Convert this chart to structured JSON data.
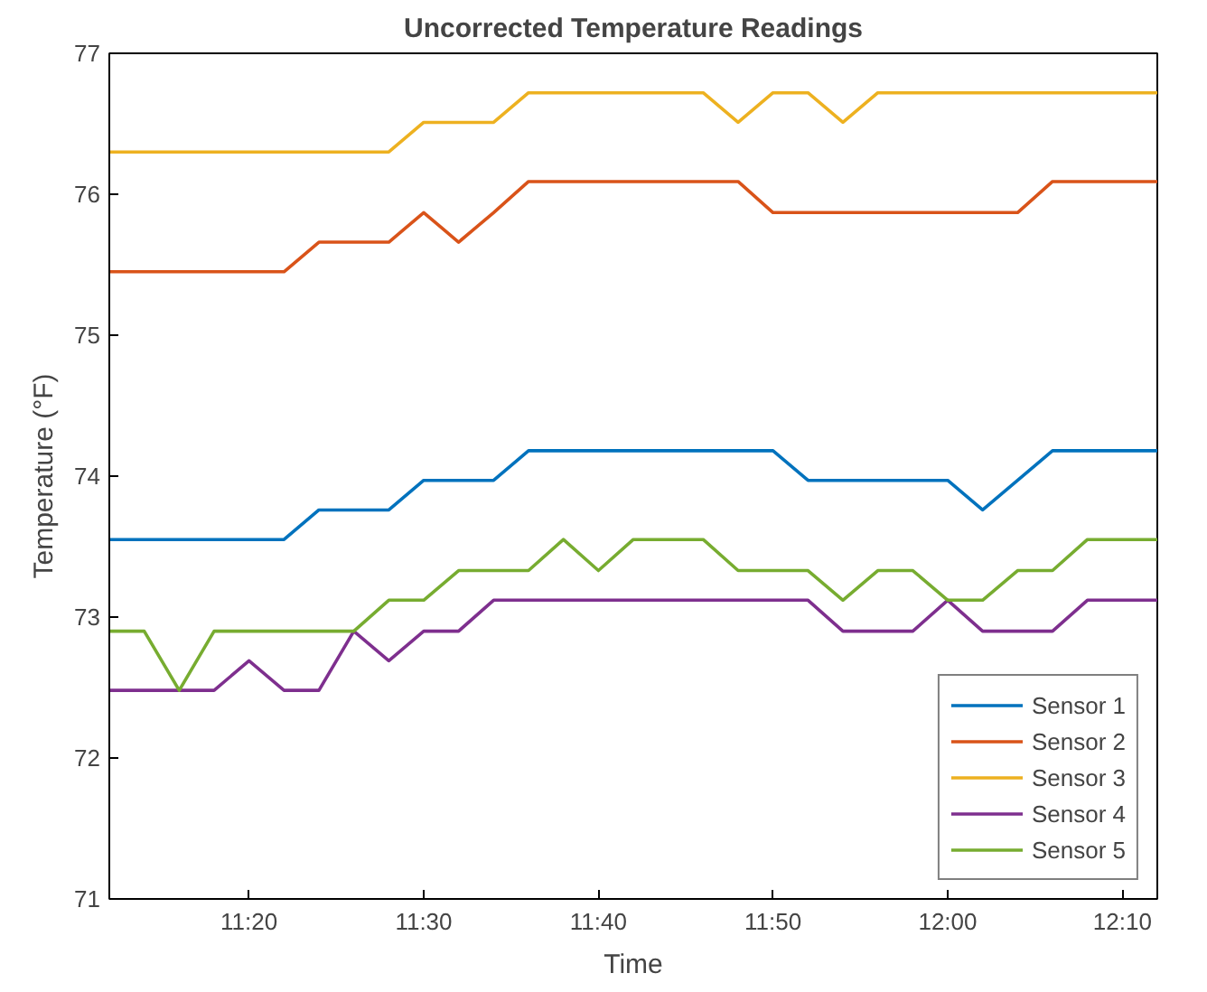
{
  "chart_data": {
    "type": "line",
    "title": "Uncorrected Temperature Readings",
    "xlabel": "Time",
    "ylabel": "Temperature (°F)",
    "x": [
      11.2,
      11.2333,
      11.2667,
      11.3,
      11.3333,
      11.3667,
      11.4,
      11.4333,
      11.4667,
      11.5,
      11.5333,
      11.5667,
      11.6,
      11.6333,
      11.6667,
      11.7,
      11.7333,
      11.7667,
      11.8,
      11.8333,
      11.8667,
      11.9,
      11.9333,
      11.9667,
      12,
      12.0333,
      12.0667,
      12.1,
      12.1333,
      12.1667,
      12.2
    ],
    "series": [
      {
        "name": "Sensor 1",
        "color": "#0072bd",
        "values": [
          73.55,
          73.55,
          73.55,
          73.55,
          73.55,
          73.55,
          73.76,
          73.76,
          73.76,
          73.97,
          73.97,
          73.97,
          74.18,
          74.18,
          74.18,
          74.18,
          74.18,
          74.18,
          74.18,
          74.18,
          73.97,
          73.97,
          73.97,
          73.97,
          73.97,
          73.76,
          73.97,
          74.18,
          74.18,
          74.18,
          74.18
        ]
      },
      {
        "name": "Sensor 2",
        "color": "#d95319",
        "values": [
          75.45,
          75.45,
          75.45,
          75.45,
          75.45,
          75.45,
          75.66,
          75.66,
          75.66,
          75.87,
          75.66,
          75.87,
          76.09,
          76.09,
          76.09,
          76.09,
          76.09,
          76.09,
          76.09,
          75.87,
          75.87,
          75.87,
          75.87,
          75.87,
          75.87,
          75.87,
          75.87,
          76.09,
          76.09,
          76.09,
          76.09
        ]
      },
      {
        "name": "Sensor 3",
        "color": "#edb120",
        "values": [
          76.3,
          76.3,
          76.3,
          76.3,
          76.3,
          76.3,
          76.3,
          76.3,
          76.3,
          76.51,
          76.51,
          76.51,
          76.72,
          76.72,
          76.72,
          76.72,
          76.72,
          76.72,
          76.51,
          76.72,
          76.72,
          76.51,
          76.72,
          76.72,
          76.72,
          76.72,
          76.72,
          76.72,
          76.72,
          76.72,
          76.72
        ]
      },
      {
        "name": "Sensor 4",
        "color": "#7e2f8e",
        "values": [
          72.48,
          72.48,
          72.48,
          72.48,
          72.69,
          72.48,
          72.48,
          72.9,
          72.69,
          72.9,
          72.9,
          73.12,
          73.12,
          73.12,
          73.12,
          73.12,
          73.12,
          73.12,
          73.12,
          73.12,
          73.12,
          72.9,
          72.9,
          72.9,
          73.12,
          72.9,
          72.9,
          72.9,
          73.12,
          73.12,
          73.12
        ]
      },
      {
        "name": "Sensor 5",
        "color": "#77ac30",
        "values": [
          72.9,
          72.9,
          72.48,
          72.9,
          72.9,
          72.9,
          72.9,
          72.9,
          73.12,
          73.12,
          73.33,
          73.33,
          73.33,
          73.55,
          73.33,
          73.55,
          73.55,
          73.55,
          73.33,
          73.33,
          73.33,
          73.12,
          73.33,
          73.33,
          73.12,
          73.12,
          73.33,
          73.33,
          73.55,
          73.55,
          73.55
        ]
      }
    ],
    "xlim": [
      11.2,
      12.2
    ],
    "xticks": [
      {
        "value": 11.3333,
        "label": "11:20"
      },
      {
        "value": 11.5,
        "label": "11:30"
      },
      {
        "value": 11.6667,
        "label": "11:40"
      },
      {
        "value": 11.8333,
        "label": "11:50"
      },
      {
        "value": 12,
        "label": "12:00"
      },
      {
        "value": 12.1667,
        "label": "12:10"
      }
    ],
    "ylim": [
      71,
      77
    ],
    "yticks": [
      71,
      72,
      73,
      74,
      75,
      76,
      77
    ],
    "grid": false,
    "legend": "bottom right",
    "line_style": "solid"
  }
}
